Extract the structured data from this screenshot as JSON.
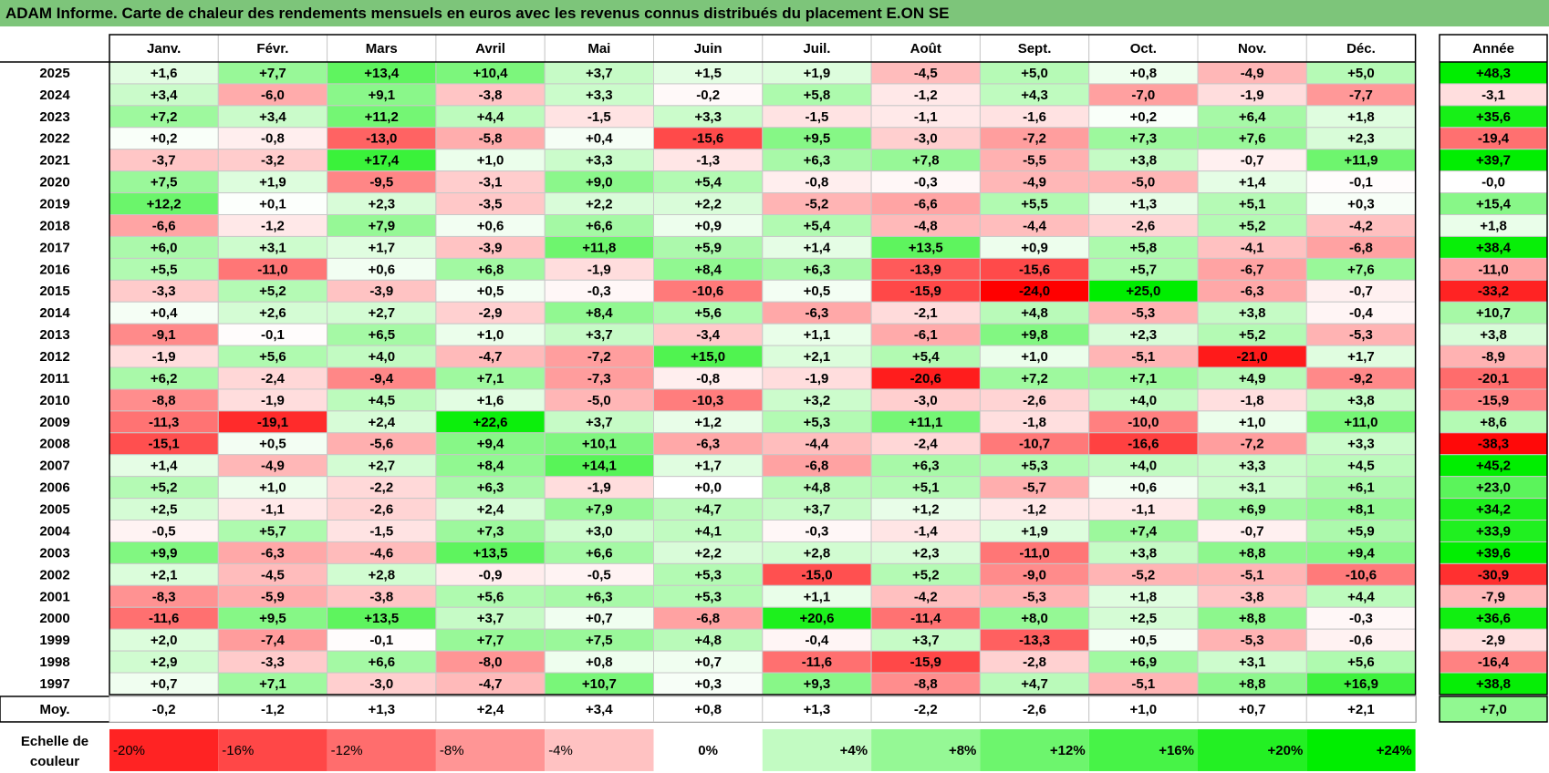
{
  "title": "ADAM Informe. Carte de chaleur des rendements mensuels en euros avec les revenus connus distribués du placement E.ON SE",
  "chart_data": {
    "type": "heatmap",
    "months": [
      "Janv.",
      "Févr.",
      "Mars",
      "Avril",
      "Mai",
      "Juin",
      "Juil.",
      "Août",
      "Sept.",
      "Oct.",
      "Nov.",
      "Déc."
    ],
    "annual_label": "Année",
    "average_label": "Moy.",
    "scale_label": "Echelle de couleur",
    "years": [
      "2025",
      "2024",
      "2023",
      "2022",
      "2021",
      "2020",
      "2019",
      "2018",
      "2017",
      "2016",
      "2015",
      "2014",
      "2013",
      "2012",
      "2011",
      "2010",
      "2009",
      "2008",
      "2007",
      "2006",
      "2005",
      "2004",
      "2003",
      "2002",
      "2001",
      "2000",
      "1999",
      "1998",
      "1997"
    ],
    "values": [
      [
        "+1,6",
        "+7,7",
        "+13,4",
        "+10,4",
        "+3,7",
        "+1,5",
        "+1,9",
        "-4,5",
        "+5,0",
        "+0,8",
        "-4,9",
        "+5,0"
      ],
      [
        "+3,4",
        "-6,0",
        "+9,1",
        "-3,8",
        "+3,3",
        "-0,2",
        "+5,8",
        "-1,2",
        "+4,3",
        "-7,0",
        "-1,9",
        "-7,7"
      ],
      [
        "+7,2",
        "+3,4",
        "+11,2",
        "+4,4",
        "-1,5",
        "+3,3",
        "-1,5",
        "-1,1",
        "-1,6",
        "+0,2",
        "+6,4",
        "+1,8"
      ],
      [
        "+0,2",
        "-0,8",
        "-13,0",
        "-5,8",
        "+0,4",
        "-15,6",
        "+9,5",
        "-3,0",
        "-7,2",
        "+7,3",
        "+7,6",
        "+2,3"
      ],
      [
        "-3,7",
        "-3,2",
        "+17,4",
        "+1,0",
        "+3,3",
        "-1,3",
        "+6,3",
        "+7,8",
        "-5,5",
        "+3,8",
        "-0,7",
        "+11,9"
      ],
      [
        "+7,5",
        "+1,9",
        "-9,5",
        "-3,1",
        "+9,0",
        "+5,4",
        "-0,8",
        "-0,3",
        "-4,9",
        "-5,0",
        "+1,4",
        "-0,1"
      ],
      [
        "+12,2",
        "+0,1",
        "+2,3",
        "-3,5",
        "+2,2",
        "+2,2",
        "-5,2",
        "-6,6",
        "+5,5",
        "+1,3",
        "+5,1",
        "+0,3"
      ],
      [
        "-6,6",
        "-1,2",
        "+7,9",
        "+0,6",
        "+6,6",
        "+0,9",
        "+5,4",
        "-4,8",
        "-4,4",
        "-2,6",
        "+5,2",
        "-4,2"
      ],
      [
        "+6,0",
        "+3,1",
        "+1,7",
        "-3,9",
        "+11,8",
        "+5,9",
        "+1,4",
        "+13,5",
        "+0,9",
        "+5,8",
        "-4,1",
        "-6,8"
      ],
      [
        "+5,5",
        "-11,0",
        "+0,6",
        "+6,8",
        "-1,9",
        "+8,4",
        "+6,3",
        "-13,9",
        "-15,6",
        "+5,7",
        "-6,7",
        "+7,6"
      ],
      [
        "-3,3",
        "+5,2",
        "-3,9",
        "+0,5",
        "-0,3",
        "-10,6",
        "+0,5",
        "-15,9",
        "-24,0",
        "+25,0",
        "-6,3",
        "-0,7"
      ],
      [
        "+0,4",
        "+2,6",
        "+2,7",
        "-2,9",
        "+8,4",
        "+5,6",
        "-6,3",
        "-2,1",
        "+4,8",
        "-5,3",
        "+3,8",
        "-0,4"
      ],
      [
        "-9,1",
        "-0,1",
        "+6,5",
        "+1,0",
        "+3,7",
        "-3,4",
        "+1,1",
        "-6,1",
        "+9,8",
        "+2,3",
        "+5,2",
        "-5,3"
      ],
      [
        "-1,9",
        "+5,6",
        "+4,0",
        "-4,7",
        "-7,2",
        "+15,0",
        "+2,1",
        "+5,4",
        "+1,0",
        "-5,1",
        "-21,0",
        "+1,7"
      ],
      [
        "+6,2",
        "-2,4",
        "-9,4",
        "+7,1",
        "-7,3",
        "-0,8",
        "-1,9",
        "-20,6",
        "+7,2",
        "+7,1",
        "+4,9",
        "-9,2"
      ],
      [
        "-8,8",
        "-1,9",
        "+4,5",
        "+1,6",
        "-5,0",
        "-10,3",
        "+3,2",
        "-3,0",
        "-2,6",
        "+4,0",
        "-1,8",
        "+3,8"
      ],
      [
        "-11,3",
        "-19,1",
        "+2,4",
        "+22,6",
        "+3,7",
        "+1,2",
        "+5,3",
        "+11,1",
        "-1,8",
        "-10,0",
        "+1,0",
        "+11,0"
      ],
      [
        "-15,1",
        "+0,5",
        "-5,6",
        "+9,4",
        "+10,1",
        "-6,3",
        "-4,4",
        "-2,4",
        "-10,7",
        "-16,6",
        "-7,2",
        "+3,3"
      ],
      [
        "+1,4",
        "-4,9",
        "+2,7",
        "+8,4",
        "+14,1",
        "+1,7",
        "-6,8",
        "+6,3",
        "+5,3",
        "+4,0",
        "+3,3",
        "+4,5"
      ],
      [
        "+5,2",
        "+1,0",
        "-2,2",
        "+6,3",
        "-1,9",
        "+0,0",
        "+4,8",
        "+5,1",
        "-5,7",
        "+0,6",
        "+3,1",
        "+6,1"
      ],
      [
        "+2,5",
        "-1,1",
        "-2,6",
        "+2,4",
        "+7,9",
        "+4,7",
        "+3,7",
        "+1,2",
        "-1,2",
        "-1,1",
        "+6,9",
        "+8,1"
      ],
      [
        "-0,5",
        "+5,7",
        "-1,5",
        "+7,3",
        "+3,0",
        "+4,1",
        "-0,3",
        "-1,4",
        "+1,9",
        "+7,4",
        "-0,7",
        "+5,9"
      ],
      [
        "+9,9",
        "-6,3",
        "-4,6",
        "+13,5",
        "+6,6",
        "+2,2",
        "+2,8",
        "+2,3",
        "-11,0",
        "+3,8",
        "+8,8",
        "+9,4"
      ],
      [
        "+2,1",
        "-4,5",
        "+2,8",
        "-0,9",
        "-0,5",
        "+5,3",
        "-15,0",
        "+5,2",
        "-9,0",
        "-5,2",
        "-5,1",
        "-10,6"
      ],
      [
        "-8,3",
        "-5,9",
        "-3,8",
        "+5,6",
        "+6,3",
        "+5,3",
        "+1,1",
        "-4,2",
        "-5,3",
        "+1,8",
        "-3,8",
        "+4,4"
      ],
      [
        "-11,6",
        "+9,5",
        "+13,5",
        "+3,7",
        "+0,7",
        "-6,8",
        "+20,6",
        "-11,4",
        "+8,0",
        "+2,5",
        "+8,8",
        "-0,3"
      ],
      [
        "+2,0",
        "-7,4",
        "-0,1",
        "+7,7",
        "+7,5",
        "+4,8",
        "-0,4",
        "+3,7",
        "-13,3",
        "+0,5",
        "-5,3",
        "-0,6"
      ],
      [
        "+2,9",
        "-3,3",
        "+6,6",
        "-8,0",
        "+0,8",
        "+0,7",
        "-11,6",
        "-15,9",
        "-2,8",
        "+6,9",
        "+3,1",
        "+5,6"
      ],
      [
        "+0,7",
        "+7,1",
        "-3,0",
        "-4,7",
        "+10,7",
        "+0,3",
        "+9,3",
        "-8,8",
        "+4,7",
        "-5,1",
        "+8,8",
        "+16,9"
      ]
    ],
    "annual": [
      "+48,3",
      "-3,1",
      "+35,6",
      "-19,4",
      "+39,7",
      "-0,0",
      "+15,4",
      "+1,8",
      "+38,4",
      "-11,0",
      "-33,2",
      "+10,7",
      "+3,8",
      "-8,9",
      "-20,1",
      "-15,9",
      "+8,6",
      "-38,3",
      "+45,2",
      "+23,0",
      "+34,2",
      "+33,9",
      "+39,6",
      "-30,9",
      "-7,9",
      "+36,6",
      "-2,9",
      "-16,4",
      "+38,8"
    ],
    "average": [
      "-0,2",
      "-1,2",
      "+1,3",
      "+2,4",
      "+3,4",
      "+0,8",
      "+1,3",
      "-2,2",
      "-2,6",
      "+1,0",
      "+0,7",
      "+2,1"
    ],
    "average_annual": "+7,0",
    "scale": [
      "-20%",
      "-16%",
      "-12%",
      "-8%",
      "-4%",
      "0%",
      "+4%",
      "+8%",
      "+12%",
      "+16%",
      "+20%",
      "+24%"
    ],
    "colors": {
      "title_bg": "#7dc57a",
      "max_red": "#ff0000",
      "max_green": "#00ee00",
      "neutral": "#ffffff"
    }
  }
}
